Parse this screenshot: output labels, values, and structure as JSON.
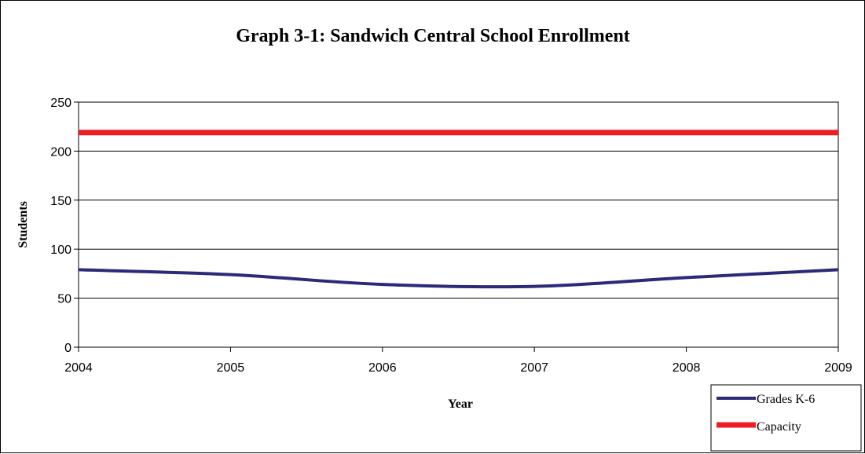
{
  "chart_data": {
    "type": "line",
    "title": "Graph 3-1: Sandwich Central School Enrollment",
    "xlabel": "Year",
    "ylabel": "Students",
    "x": [
      "2004",
      "2005",
      "2006",
      "2007",
      "2008",
      "2009"
    ],
    "ylim": [
      0,
      250
    ],
    "yticks": [
      0,
      50,
      100,
      150,
      200,
      250
    ],
    "grid": true,
    "legend_position": "bottom-right",
    "series": [
      {
        "name": "Grades K-6",
        "color": "#2b2a78",
        "values": [
          79,
          74,
          64,
          62,
          71,
          79
        ]
      },
      {
        "name": "Capacity",
        "color": "#ee1c25",
        "values": [
          219,
          219,
          219,
          219,
          219,
          219
        ]
      }
    ]
  }
}
